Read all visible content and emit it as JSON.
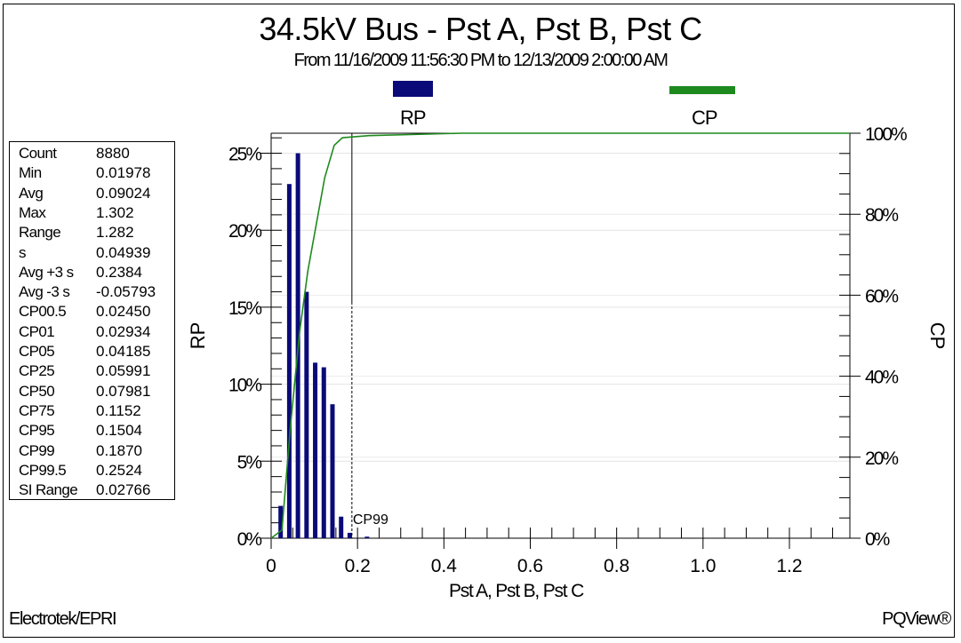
{
  "chart_data": {
    "type": "bar",
    "title": "34.5kV Bus - Pst A, Pst B, Pst C",
    "subtitle": "From 11/16/2009 11:56:30 PM to 12/13/2009 2:00:00 AM",
    "xlabel": "Pst A, Pst B, Pst C",
    "ylabel": "RP",
    "y2label": "CP",
    "xlim": [
      0,
      1.34
    ],
    "ylim": [
      0,
      26.3
    ],
    "y2lim": [
      0,
      100
    ],
    "x_ticks": [
      "0",
      "0.2",
      "0.4",
      "0.6",
      "0.8",
      "1.0",
      "1.2"
    ],
    "x_tick_values": [
      0,
      0.2,
      0.4,
      0.6,
      0.8,
      1.0,
      1.2
    ],
    "y_ticks": [
      "0%",
      "5%",
      "10%",
      "15%",
      "20%",
      "25%"
    ],
    "y_tick_values": [
      0,
      5,
      10,
      15,
      20,
      25
    ],
    "y2_ticks": [
      "0%",
      "20%",
      "40%",
      "60%",
      "80%",
      "100%"
    ],
    "y2_tick_values": [
      0,
      20,
      40,
      60,
      80,
      100
    ],
    "grid": true,
    "legend_placement": "top",
    "series": [
      {
        "name": "RP",
        "type": "bar",
        "color": "#0a0a78",
        "x": [
          0.022,
          0.042,
          0.062,
          0.082,
          0.102,
          0.122,
          0.142,
          0.162,
          0.182,
          0.222
        ],
        "values": [
          2.1,
          23.0,
          25.0,
          16.0,
          11.4,
          11.1,
          8.7,
          1.4,
          0.35,
          0.1
        ]
      },
      {
        "name": "CP",
        "type": "line",
        "color": "#1e8a1e",
        "x": [
          0,
          0.025,
          0.045,
          0.066,
          0.085,
          0.124,
          0.146,
          0.165,
          0.227,
          0.44,
          1.34
        ],
        "values": [
          0,
          2,
          28,
          51,
          66,
          89,
          97,
          98.9,
          99.4,
          100,
          100
        ]
      }
    ],
    "annotations": [
      {
        "label": "CP99",
        "x": 0.187
      }
    ]
  },
  "stats": [
    {
      "label": "Count",
      "value": "8880"
    },
    {
      "label": "Min",
      "value": "0.01978"
    },
    {
      "label": "Avg",
      "value": "0.09024"
    },
    {
      "label": "Max",
      "value": "1.302"
    },
    {
      "label": "Range",
      "value": "1.282"
    },
    {
      "label": "s",
      "value": "0.04939"
    },
    {
      "label": "Avg +3 s",
      "value": "0.2384"
    },
    {
      "label": "Avg -3 s",
      "value": "-0.05793"
    },
    {
      "label": "CP00.5",
      "value": "0.02450"
    },
    {
      "label": "CP01",
      "value": "0.02934"
    },
    {
      "label": "CP05",
      "value": "0.04185"
    },
    {
      "label": "CP25",
      "value": "0.05991"
    },
    {
      "label": "CP50",
      "value": "0.07981"
    },
    {
      "label": "CP75",
      "value": "0.1152"
    },
    {
      "label": "CP95",
      "value": "0.1504"
    },
    {
      "label": "CP99",
      "value": "0.1870"
    },
    {
      "label": "CP99.5",
      "value": "0.2524"
    },
    {
      "label": "SI Range",
      "value": "0.02766"
    }
  ],
  "footer": {
    "left": "Electrotek/EPRI",
    "right": "PQView®"
  }
}
